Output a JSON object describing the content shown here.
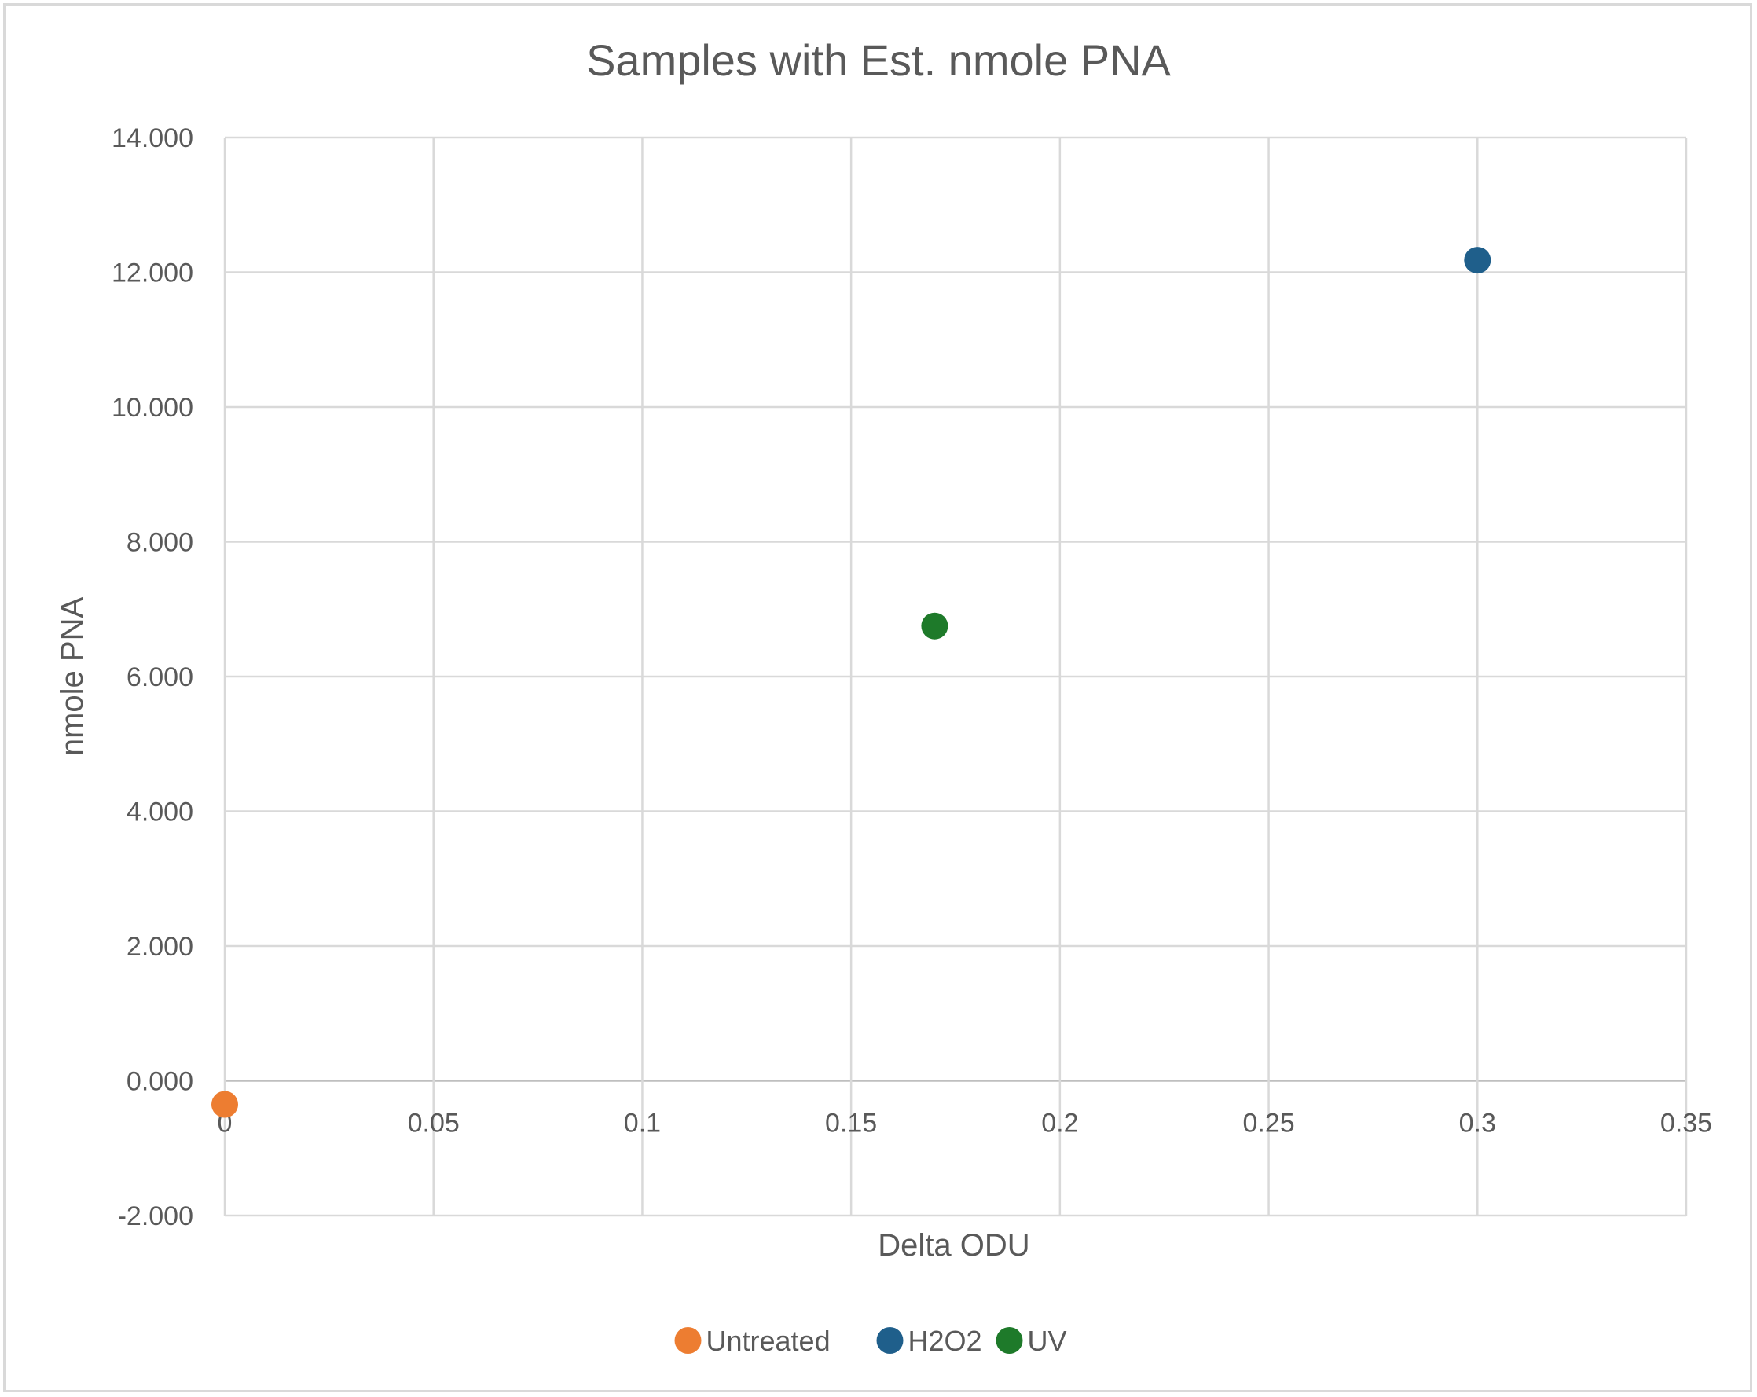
{
  "chart_data": {
    "type": "scatter",
    "title": "Samples with Est. nmole PNA",
    "xlabel": "Delta ODU",
    "ylabel": "nmole PNA",
    "xlim": [
      0,
      0.35
    ],
    "ylim": [
      -2,
      14
    ],
    "x_ticks": [
      0,
      0.05,
      0.1,
      0.15,
      0.2,
      0.25,
      0.3,
      0.35
    ],
    "x_tick_labels": [
      "0",
      "0.05",
      "0.1",
      "0.15",
      "0.2",
      "0.25",
      "0.3",
      "0.35"
    ],
    "y_ticks": [
      -2,
      0,
      2,
      4,
      6,
      8,
      10,
      12,
      14
    ],
    "y_tick_labels": [
      "-2.000",
      "0.000",
      "2.000",
      "4.000",
      "6.000",
      "8.000",
      "10.000",
      "12.000",
      "14.000"
    ],
    "grid": true,
    "legend_position": "bottom",
    "series": [
      {
        "name": "Untreated",
        "color": "#ed7d31",
        "x": [
          0
        ],
        "y": [
          -0.35
        ]
      },
      {
        "name": "H2O2",
        "color": "#1f5f8b",
        "x": [
          0.3
        ],
        "y": [
          12.18
        ]
      },
      {
        "name": "UV",
        "color": "#1e7a2a",
        "x": [
          0.17
        ],
        "y": [
          6.75
        ]
      }
    ]
  }
}
